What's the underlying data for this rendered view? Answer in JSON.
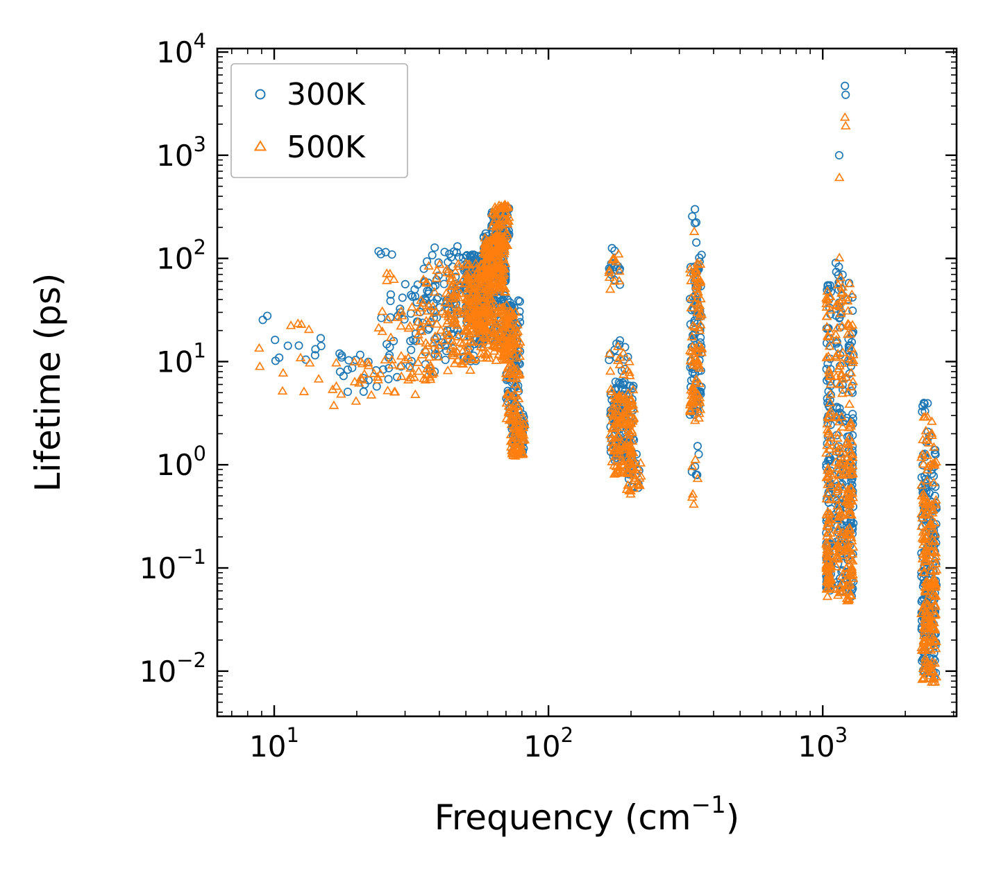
{
  "chart_data": {
    "type": "scatter",
    "title": "",
    "x_axis": {
      "label_prefix": "Frequency (cm",
      "label_superscript": "−1",
      "label_suffix": ")",
      "scale": "log",
      "log_range": [
        0.7924,
        3.488
      ],
      "major_tick_exponents": [
        1,
        2,
        3
      ]
    },
    "y_axis": {
      "label": "Lifetime (ps)",
      "scale": "log",
      "log_range": [
        -2.438,
        4.034
      ],
      "major_tick_exponents": [
        4,
        3,
        2,
        1,
        0,
        -1,
        -2
      ]
    },
    "grid": false,
    "legend": {
      "position": "upper-left",
      "entries": [
        {
          "label": "300K",
          "marker": "circle",
          "color": "#1f77b4"
        },
        {
          "label": "500K",
          "marker": "triangle",
          "color": "#ff7f0e"
        }
      ]
    },
    "cluster_format": "[x_min_cm-1, x_max_cm-1, lifetime_min_ps, lifetime_max_ps, point_count], points log-uniform within box",
    "series": [
      {
        "name": "300K",
        "marker": "circle",
        "color": "#1f77b4",
        "clusters": [
          [
            9,
            16,
            8,
            32,
            12
          ],
          [
            17,
            24,
            5,
            13,
            18
          ],
          [
            24,
            33,
            6,
            45,
            28
          ],
          [
            24,
            27,
            100,
            125,
            3
          ],
          [
            30,
            33,
            40,
            60,
            4
          ],
          [
            33,
            42,
            8,
            60,
            45
          ],
          [
            35,
            44,
            60,
            130,
            12
          ],
          [
            42,
            55,
            10,
            85,
            90
          ],
          [
            44,
            50,
            95,
            135,
            6
          ],
          [
            50,
            62,
            25,
            110,
            150
          ],
          [
            58,
            70,
            60,
            180,
            150
          ],
          [
            62,
            72,
            150,
            320,
            60
          ],
          [
            55,
            75,
            14,
            45,
            120
          ],
          [
            70,
            79,
            3,
            40,
            90
          ],
          [
            73,
            82,
            1.3,
            3.2,
            50
          ],
          [
            166,
            183,
            55,
            135,
            14
          ],
          [
            166,
            200,
            8,
            17,
            12
          ],
          [
            168,
            205,
            1.1,
            6.5,
            130
          ],
          [
            193,
            215,
            0.55,
            1.3,
            18
          ],
          [
            328,
            362,
            3,
            110,
            90
          ],
          [
            333,
            348,
            140,
            300,
            4
          ],
          [
            333,
            356,
            0.65,
            1.6,
            6
          ],
          [
            1030,
            1072,
            0.055,
            1.2,
            60
          ],
          [
            1030,
            1072,
            1.2,
            60,
            40
          ],
          [
            1115,
            1185,
            0.06,
            2,
            55
          ],
          [
            1115,
            1185,
            2,
            110,
            35
          ],
          [
            1215,
            1295,
            0.05,
            1.5,
            70
          ],
          [
            1215,
            1295,
            1.5,
            70,
            35
          ],
          [
            2290,
            2420,
            0.009,
            0.6,
            90
          ],
          [
            2290,
            2420,
            0.6,
            4,
            18
          ],
          [
            2440,
            2600,
            0.008,
            0.5,
            90
          ],
          [
            2440,
            2600,
            0.5,
            2.8,
            12
          ]
        ],
        "outlier_points": [
          [
            25.5,
            115
          ],
          [
            1148,
            1000
          ],
          [
            1205,
            4700
          ],
          [
            1212,
            3850
          ],
          [
            342,
            300
          ],
          [
            2350,
            3.9
          ],
          [
            2360,
            3.3
          ]
        ]
      },
      {
        "name": "500K",
        "marker": "triangle",
        "color": "#ff7f0e",
        "clusters": [
          [
            8.8,
            15,
            5,
            25,
            12
          ],
          [
            16,
            24,
            3.5,
            10,
            20
          ],
          [
            24,
            33,
            4.5,
            35,
            30
          ],
          [
            25,
            28,
            55,
            85,
            4
          ],
          [
            33,
            42,
            6,
            40,
            45
          ],
          [
            35,
            44,
            45,
            90,
            10
          ],
          [
            42,
            55,
            8,
            60,
            90
          ],
          [
            44,
            50,
            60,
            90,
            6
          ],
          [
            50,
            62,
            18,
            90,
            150
          ],
          [
            58,
            70,
            45,
            160,
            150
          ],
          [
            62,
            72,
            130,
            330,
            60
          ],
          [
            55,
            75,
            10,
            35,
            120
          ],
          [
            70,
            79,
            2.5,
            30,
            90
          ],
          [
            73,
            82,
            1.2,
            2.8,
            60
          ],
          [
            166,
            183,
            45,
            110,
            12
          ],
          [
            166,
            200,
            7,
            14,
            12
          ],
          [
            168,
            205,
            0.8,
            5.5,
            140
          ],
          [
            193,
            218,
            0.5,
            1.1,
            20
          ],
          [
            328,
            362,
            2.5,
            90,
            90
          ],
          [
            333,
            356,
            0.4,
            1.2,
            6
          ],
          [
            1030,
            1072,
            0.05,
            1.0,
            70
          ],
          [
            1030,
            1072,
            1.0,
            50,
            40
          ],
          [
            1115,
            1185,
            0.05,
            1.8,
            60
          ],
          [
            1115,
            1185,
            1.8,
            90,
            35
          ],
          [
            1215,
            1295,
            0.045,
            1.2,
            80
          ],
          [
            1215,
            1295,
            1.2,
            60,
            35
          ],
          [
            2290,
            2420,
            0.008,
            0.5,
            100
          ],
          [
            2290,
            2420,
            0.5,
            3,
            15
          ],
          [
            2440,
            2600,
            0.0075,
            0.45,
            100
          ],
          [
            2440,
            2600,
            0.45,
            2.2,
            10
          ]
        ],
        "outlier_points": [
          [
            1205,
            2300
          ],
          [
            1212,
            1900
          ],
          [
            1150,
            600
          ],
          [
            340,
            180
          ],
          [
            1150,
            100
          ],
          [
            2500,
            2.6
          ]
        ]
      }
    ]
  }
}
